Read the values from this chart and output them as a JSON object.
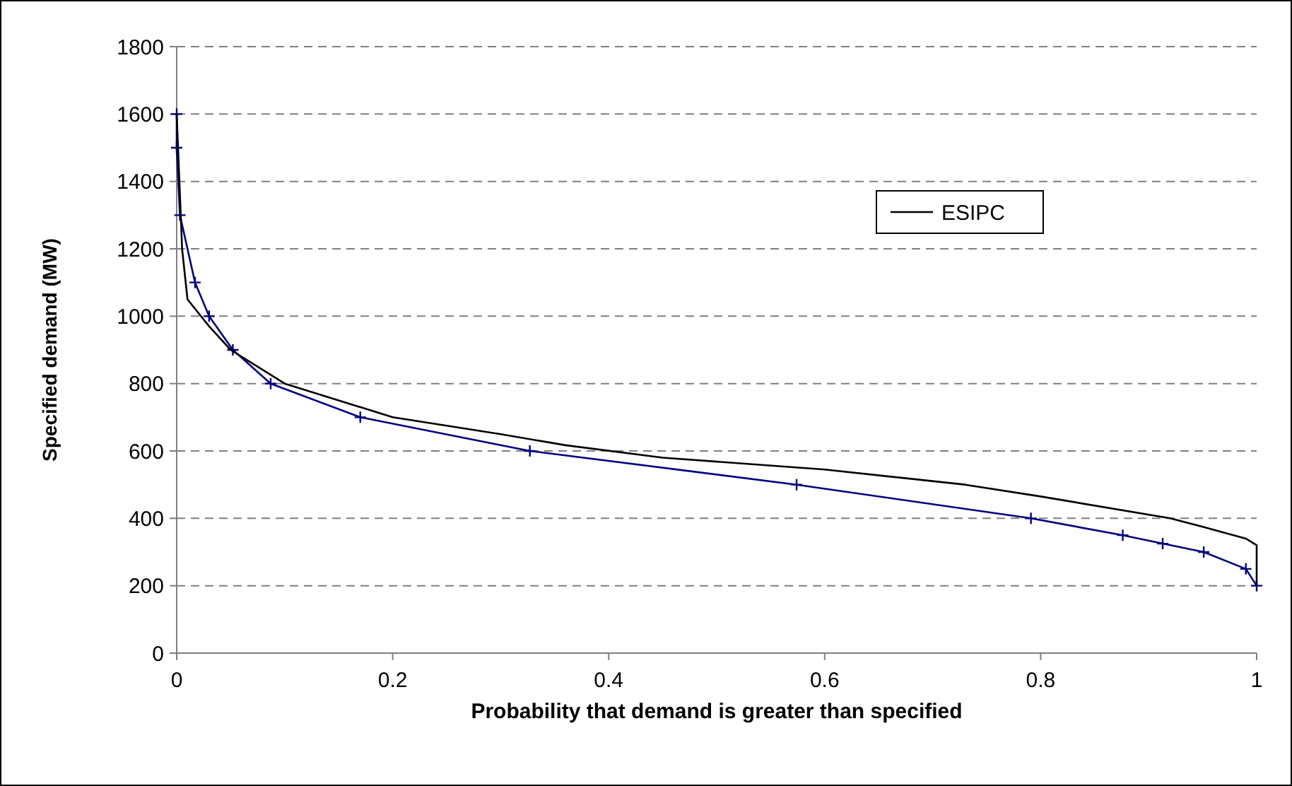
{
  "chart_data": {
    "type": "line",
    "xlabel": "Probability that demand is greater than specified",
    "ylabel": "Specified demand (MW)",
    "xlim": [
      0,
      1
    ],
    "xticks": [
      0,
      0.2,
      0.4,
      0.6,
      0.8,
      1
    ],
    "ylim": [
      0,
      1800
    ],
    "yticks": [
      0,
      200,
      400,
      600,
      800,
      1000,
      1200,
      1400,
      1600,
      1800
    ],
    "grid": "y",
    "legend": "top right",
    "series": [
      {
        "color": "#000080",
        "marker": "cross",
        "x": [
          0,
          0,
          0.003,
          0.017,
          0.03,
          0.052,
          0.087,
          0.17,
          0.327,
          0.574,
          0.791,
          0.876,
          0.913,
          0.951,
          0.99,
          1
        ],
        "values": [
          1600,
          1500,
          1300,
          1100,
          1000,
          900,
          800,
          700,
          600,
          500,
          400,
          350,
          325,
          300,
          250,
          200
        ]
      },
      {
        "name": "ESIPC",
        "color": "#000000",
        "marker": "none",
        "x": [
          0,
          0.005,
          0.01,
          0.03,
          0.05,
          0.1,
          0.2,
          0.3,
          0.36,
          0.45,
          0.6,
          0.73,
          0.8,
          0.92,
          0.95,
          0.99,
          1,
          1
        ],
        "values": [
          1600,
          1200,
          1050,
          970,
          900,
          800,
          700,
          650,
          617,
          580,
          545,
          500,
          465,
          400,
          375,
          340,
          320,
          200
        ]
      }
    ]
  }
}
